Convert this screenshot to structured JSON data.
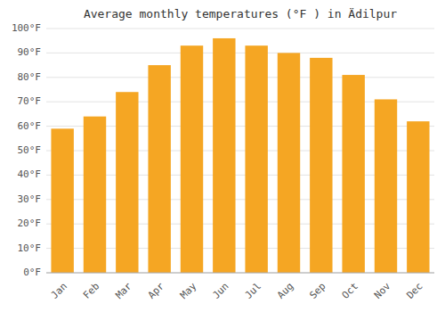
{
  "chart_data": {
    "type": "bar",
    "title": "Average monthly temperatures (°F ) in Ädilpur",
    "categories": [
      "Jan",
      "Feb",
      "Mar",
      "Apr",
      "May",
      "Jun",
      "Jul",
      "Aug",
      "Sep",
      "Oct",
      "Nov",
      "Dec"
    ],
    "values": [
      59,
      64,
      74,
      85,
      93,
      96,
      93,
      90,
      88,
      81,
      71,
      62
    ],
    "color": "#F5A623",
    "ylim": [
      0,
      100
    ],
    "yticks": [
      {
        "value": 0,
        "label": "0°F"
      },
      {
        "value": 10,
        "label": "10°F"
      },
      {
        "value": 20,
        "label": "20°F"
      },
      {
        "value": 30,
        "label": "30°F"
      },
      {
        "value": 40,
        "label": "40°F"
      },
      {
        "value": 50,
        "label": "50°F"
      },
      {
        "value": 60,
        "label": "60°F"
      },
      {
        "value": 70,
        "label": "70°F"
      },
      {
        "value": 80,
        "label": "80°F"
      },
      {
        "value": 90,
        "label": "90°F"
      },
      {
        "value": 100,
        "label": "100°F"
      }
    ],
    "grid": true
  }
}
